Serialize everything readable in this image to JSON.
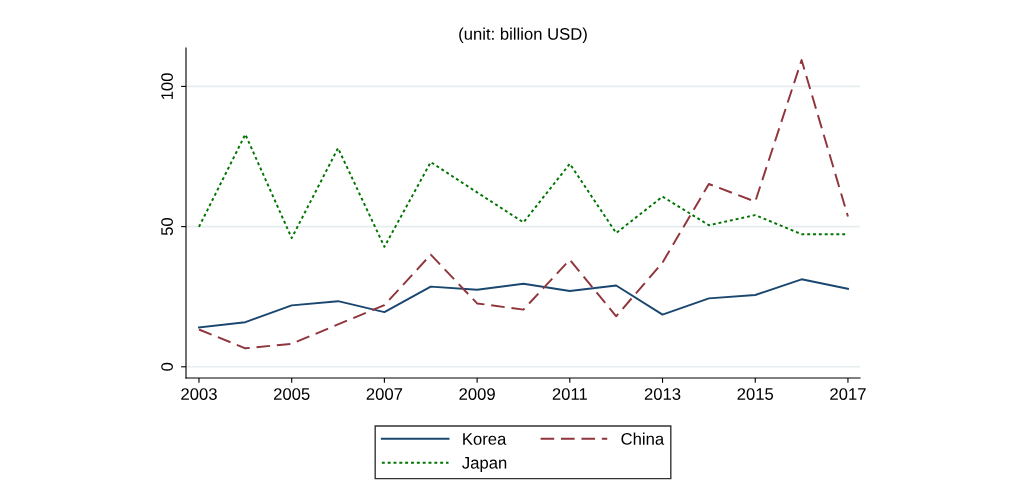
{
  "chart_data": {
    "type": "line",
    "title": "(unit: billion USD)",
    "x": [
      2003,
      2004,
      2005,
      2006,
      2007,
      2008,
      2009,
      2010,
      2011,
      2012,
      2013,
      2014,
      2015,
      2016,
      2017
    ],
    "series": [
      {
        "name": "Korea",
        "color": "#1a476f",
        "line_style": "solid",
        "values": [
          14.0,
          15.9,
          21.9,
          23.4,
          19.5,
          28.6,
          27.5,
          29.6,
          27.0,
          29.0,
          18.6,
          24.4,
          25.6,
          31.2,
          27.8
        ]
      },
      {
        "name": "China",
        "color": "#90353b",
        "line_style": "dashed",
        "values": [
          13.3,
          6.6,
          8.2,
          15.1,
          22.0,
          40.0,
          22.6,
          20.4,
          38.2,
          18.0,
          37.2,
          65.2,
          58.9,
          109.4,
          53.6
        ]
      },
      {
        "name": "Japan",
        "color": "#007400",
        "line_style": "dotted",
        "values": [
          49.9,
          82.9,
          45.9,
          78.0,
          42.8,
          73.0,
          62.2,
          51.5,
          72.4,
          47.7,
          60.7,
          50.5,
          54.1,
          47.3,
          47.3
        ]
      }
    ],
    "xlim": [
      2002.72,
      2017.26
    ],
    "ylim": [
      -4,
      113.7
    ],
    "xticks": [
      2003,
      2005,
      2007,
      2009,
      2011,
      2013,
      2015,
      2017
    ],
    "yticks": [
      0,
      50,
      100
    ],
    "grid": "y",
    "legend": "bottom",
    "marker": "none"
  }
}
